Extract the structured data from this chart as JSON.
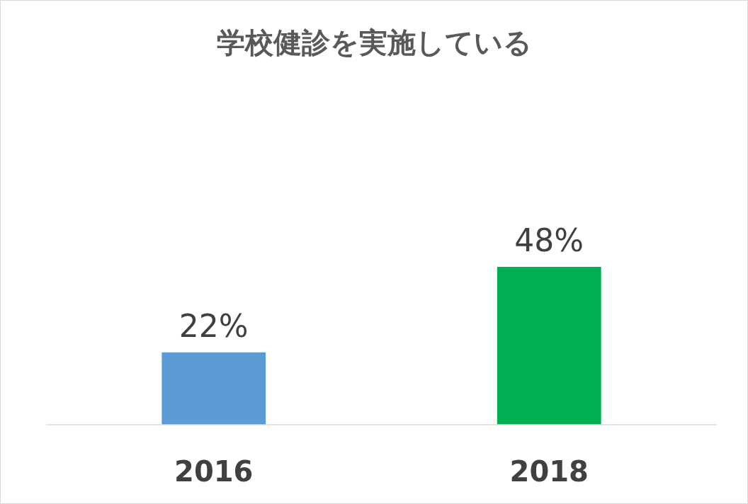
{
  "chart_data": {
    "type": "bar",
    "title": "学校健診を実施している",
    "categories": [
      "2016",
      "2018"
    ],
    "values": [
      22,
      48
    ],
    "colors": [
      "#5b9bd5",
      "#00b050"
    ],
    "value_labels": [
      "22%",
      "48%"
    ],
    "tick_labels": "x"
  }
}
